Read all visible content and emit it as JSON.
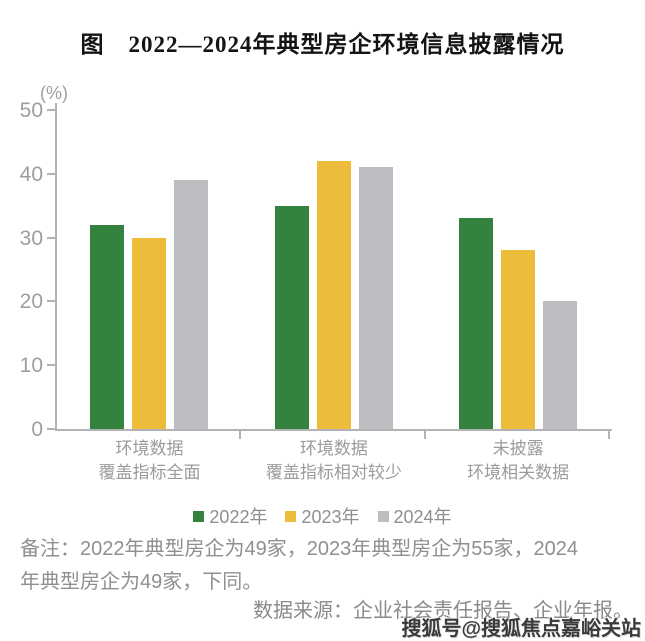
{
  "page": {
    "title": "图　2022—2024年典型房企环境信息披露情况",
    "notes": {
      "line1": "备注：2022年典型房企为49家，2023年典型房企为55家，2024",
      "line2": "年典型房企为49家，下同。"
    },
    "source": "数据来源：企业社会责任报告、企业年报。",
    "watermark": "搜狐号@搜狐焦点嘉峪关站"
  },
  "chart_data": {
    "type": "bar",
    "title": "图　2022—2024年典型房企环境信息披露情况",
    "unit_label": "(%)",
    "categories": [
      [
        "环境数据",
        "覆盖指标全面"
      ],
      [
        "环境数据",
        "覆盖指标相对较少"
      ],
      [
        "未披露",
        "环境相关数据"
      ]
    ],
    "series": [
      {
        "name": "2022年",
        "color": "#35823E",
        "values": [
          32,
          35,
          33
        ]
      },
      {
        "name": "2023年",
        "color": "#EDBC3B",
        "values": [
          30,
          42,
          28
        ]
      },
      {
        "name": "2024年",
        "color": "#BDBEC2",
        "values": [
          39,
          41,
          20
        ]
      }
    ],
    "ylim": [
      0,
      50
    ],
    "yticks": [
      0,
      10,
      20,
      30,
      40,
      50
    ],
    "grid": false,
    "legend_position": "bottom",
    "axis_color": "#B3B3B5",
    "label_color": "#9B9B9B"
  }
}
